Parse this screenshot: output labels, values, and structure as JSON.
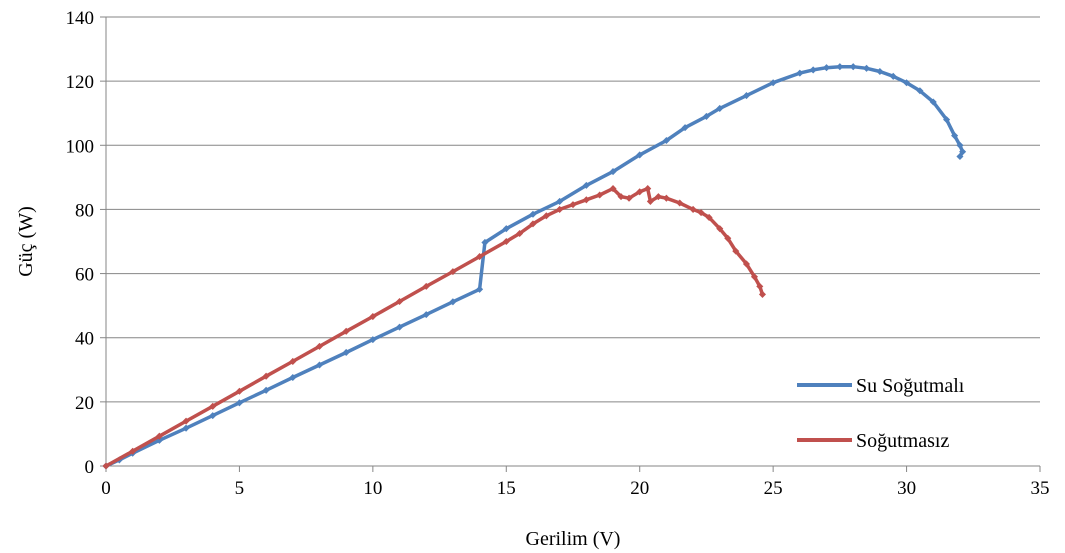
{
  "chart_data": {
    "type": "line",
    "title": "",
    "xlabel": "Gerilim (V)",
    "ylabel": "Güç (W)",
    "xlim": [
      0,
      35
    ],
    "ylim": [
      0,
      140
    ],
    "x_ticks": [
      0,
      5,
      10,
      15,
      20,
      25,
      30,
      35
    ],
    "y_ticks": [
      0,
      20,
      40,
      60,
      80,
      100,
      120,
      140
    ],
    "grid": "horizontal",
    "legend_position": "bottom-right",
    "series": [
      {
        "name": "Su Soğutmalı",
        "color": "#4F81BD",
        "points": [
          [
            0,
            0
          ],
          [
            0.5,
            1.9
          ],
          [
            1,
            4
          ],
          [
            2,
            8
          ],
          [
            3,
            11.8
          ],
          [
            4,
            15.7
          ],
          [
            5,
            19.7
          ],
          [
            6,
            23.6
          ],
          [
            7,
            27.6
          ],
          [
            8,
            31.5
          ],
          [
            9,
            35.4
          ],
          [
            10,
            39.4
          ],
          [
            11,
            43.3
          ],
          [
            12,
            47.2
          ],
          [
            13,
            51.2
          ],
          [
            14,
            55.1
          ],
          [
            14.2,
            69.7
          ],
          [
            15,
            74
          ],
          [
            16,
            78.5
          ],
          [
            17,
            82.5
          ],
          [
            18,
            87.5
          ],
          [
            19,
            91.8
          ],
          [
            20,
            97
          ],
          [
            21,
            101.5
          ],
          [
            21.7,
            105.5
          ],
          [
            22.5,
            109
          ],
          [
            23,
            111.5
          ],
          [
            24,
            115.5
          ],
          [
            25,
            119.5
          ],
          [
            26,
            122.5
          ],
          [
            26.5,
            123.5
          ],
          [
            27,
            124.2
          ],
          [
            27.5,
            124.5
          ],
          [
            28,
            124.5
          ],
          [
            28.5,
            124
          ],
          [
            29,
            123
          ],
          [
            29.5,
            121.5
          ],
          [
            30,
            119.5
          ],
          [
            30.5,
            117
          ],
          [
            31,
            113.5
          ],
          [
            31.5,
            108
          ],
          [
            31.8,
            103
          ],
          [
            32,
            100
          ],
          [
            32.1,
            98
          ],
          [
            32,
            96.5
          ]
        ]
      },
      {
        "name": "Soğutmasız",
        "color": "#C0504D",
        "points": [
          [
            0,
            0
          ],
          [
            1,
            4.6
          ],
          [
            2,
            9.3
          ],
          [
            3,
            14
          ],
          [
            4,
            18.6
          ],
          [
            5,
            23.3
          ],
          [
            6,
            28
          ],
          [
            7,
            32.6
          ],
          [
            8,
            37.3
          ],
          [
            9,
            42
          ],
          [
            10,
            46.6
          ],
          [
            11,
            51.3
          ],
          [
            12,
            56
          ],
          [
            13,
            60.6
          ],
          [
            14,
            65.3
          ],
          [
            15,
            70
          ],
          [
            15.5,
            72.5
          ],
          [
            16,
            75.5
          ],
          [
            16.5,
            78
          ],
          [
            17,
            80
          ],
          [
            17.5,
            81.5
          ],
          [
            18,
            83
          ],
          [
            18.5,
            84.5
          ],
          [
            19,
            86.5
          ],
          [
            19.3,
            84
          ],
          [
            19.6,
            83.5
          ],
          [
            20,
            85.5
          ],
          [
            20.3,
            86.5
          ],
          [
            20.4,
            82.5
          ],
          [
            20.7,
            84
          ],
          [
            21,
            83.5
          ],
          [
            21.5,
            82
          ],
          [
            22,
            80
          ],
          [
            22.3,
            79
          ],
          [
            22.6,
            77.5
          ],
          [
            23,
            74
          ],
          [
            23.3,
            71
          ],
          [
            23.6,
            67
          ],
          [
            24,
            63
          ],
          [
            24.3,
            59
          ],
          [
            24.5,
            56
          ],
          [
            24.6,
            53.5
          ]
        ]
      }
    ]
  }
}
